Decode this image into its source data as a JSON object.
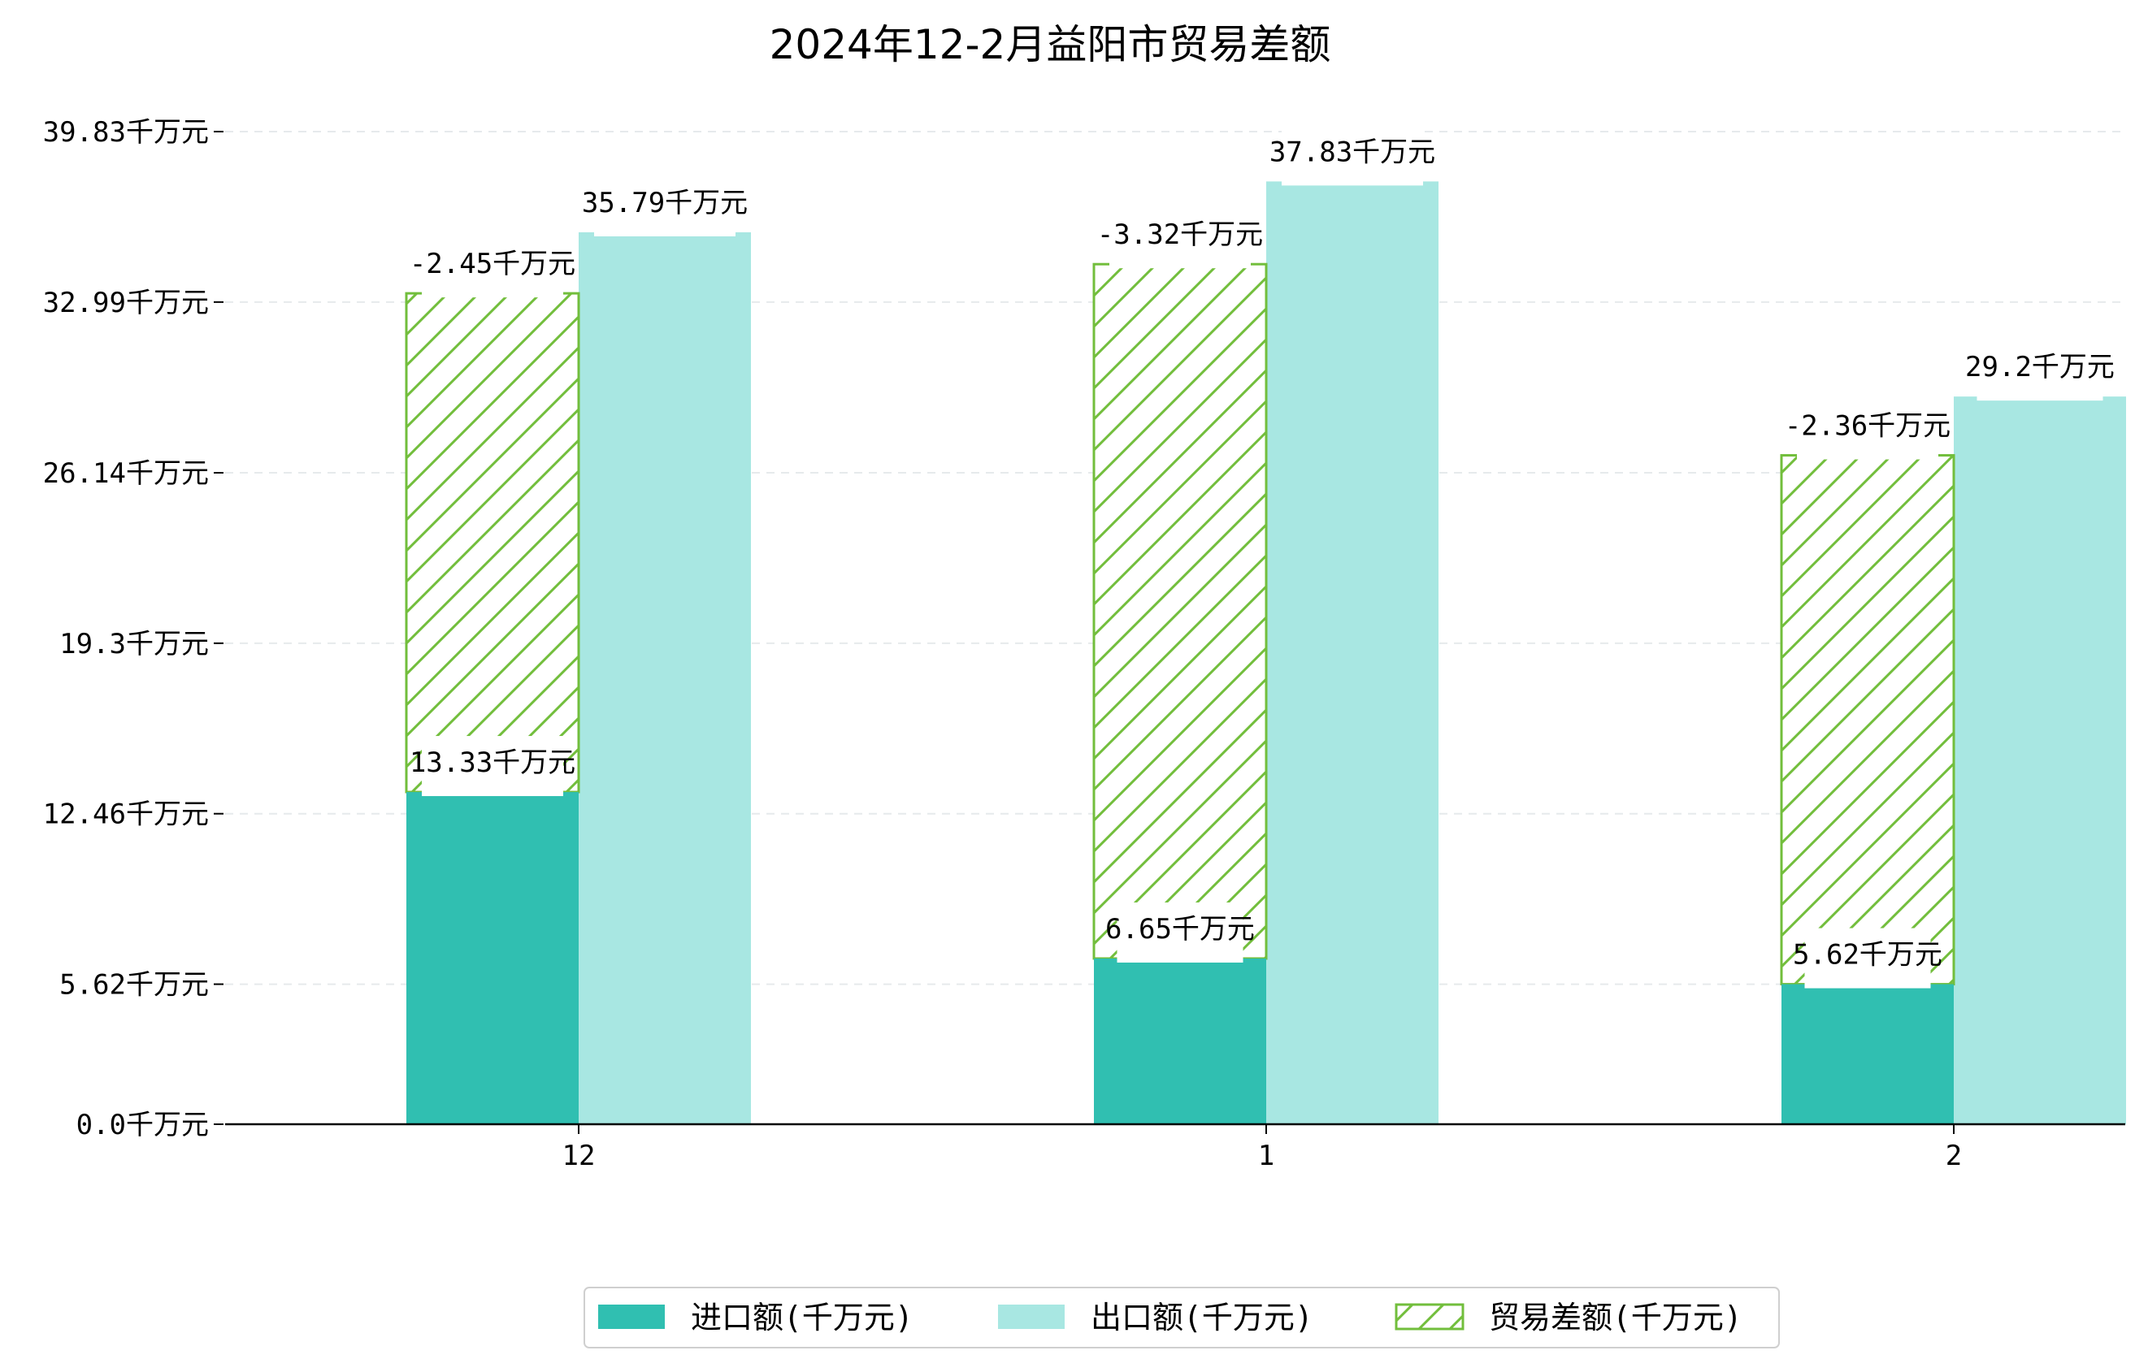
{
  "chart_data": {
    "type": "bar",
    "title": "2024年12-2月益阳市贸易差额",
    "categories": [
      "12",
      "1",
      "2"
    ],
    "unit": "千万元",
    "yticks": [
      "0.0千万元",
      "5.62千万元",
      "12.46千万元",
      "19.3千万元",
      "26.14千万元",
      "32.99千万元",
      "39.83千万元"
    ],
    "ytick_values": [
      0,
      5.62,
      12.46,
      19.3,
      26.14,
      32.99,
      39.83
    ],
    "ylim": [
      0,
      39.83
    ],
    "grid": "horizontal-dashed",
    "legend_position": "bottom-center",
    "series": [
      {
        "name": "进口额(千万元)",
        "values": [
          13.33,
          6.65,
          5.62
        ],
        "labels": [
          "13.33千万元",
          "6.65千万元",
          "5.62千万元"
        ],
        "color": "#30BFB1"
      },
      {
        "name": "出口额(千万元)",
        "values": [
          35.79,
          37.83,
          29.2
        ],
        "labels": [
          "35.79千万元",
          "37.83千万元",
          "29.2千万元"
        ],
        "color": "#A8E7E2"
      },
      {
        "name": "贸易差额(千万元)",
        "values": [
          -2.45,
          -3.32,
          -2.36
        ],
        "labels": [
          "-2.45千万元",
          "-3.32千万元",
          "-2.36千万元"
        ],
        "color": "#72BE3C",
        "pattern": "hatch"
      }
    ]
  }
}
